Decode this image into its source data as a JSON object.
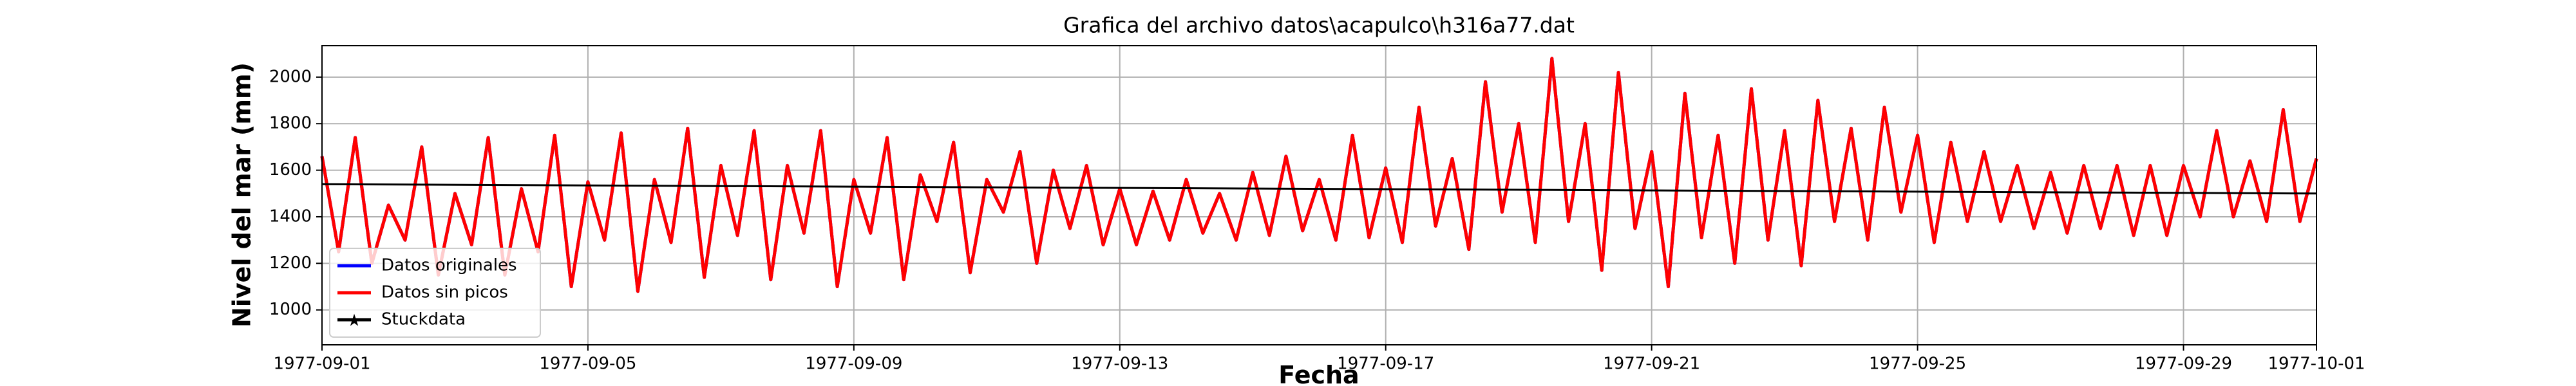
{
  "chart_data": {
    "type": "line",
    "title": "Grafica del archivo datos\\acapulco\\h316a77.dat",
    "xlabel": "Fecha",
    "ylabel": "Nivel del mar (mm)",
    "xlim": [
      0,
      30
    ],
    "ylim": [
      850,
      2135
    ],
    "xticks": [
      {
        "value": 0,
        "label": "1977-09-01"
      },
      {
        "value": 4,
        "label": "1977-09-05"
      },
      {
        "value": 8,
        "label": "1977-09-09"
      },
      {
        "value": 12,
        "label": "1977-09-13"
      },
      {
        "value": 16,
        "label": "1977-09-17"
      },
      {
        "value": 20,
        "label": "1977-09-21"
      },
      {
        "value": 24,
        "label": "1977-09-25"
      },
      {
        "value": 28,
        "label": "1977-09-29"
      },
      {
        "value": 30,
        "label": "1977-10-01"
      }
    ],
    "yticks": [
      1000,
      1200,
      1400,
      1600,
      1800,
      2000
    ],
    "grid": true,
    "legend": "lower left",
    "x": [
      0,
      0.25,
      0.5,
      0.75,
      1,
      1.25,
      1.5,
      1.75,
      2,
      2.25,
      2.5,
      2.75,
      3,
      3.25,
      3.5,
      3.75,
      4,
      4.25,
      4.5,
      4.75,
      5,
      5.25,
      5.5,
      5.75,
      6,
      6.25,
      6.5,
      6.75,
      7,
      7.25,
      7.5,
      7.75,
      8,
      8.25,
      8.5,
      8.75,
      9,
      9.25,
      9.5,
      9.75,
      10,
      10.25,
      10.5,
      10.75,
      11,
      11.25,
      11.5,
      11.75,
      12,
      12.25,
      12.5,
      12.75,
      13,
      13.25,
      13.5,
      13.75,
      14,
      14.25,
      14.5,
      14.75,
      15,
      15.25,
      15.5,
      15.75,
      16,
      16.25,
      16.5,
      16.75,
      17,
      17.25,
      17.5,
      17.75,
      18,
      18.25,
      18.5,
      18.75,
      19,
      19.25,
      19.5,
      19.75,
      20,
      20.25,
      20.5,
      20.75,
      21,
      21.25,
      21.5,
      21.75,
      22,
      22.25,
      22.5,
      22.75,
      23,
      23.25,
      23.5,
      23.75,
      24,
      24.25,
      24.5,
      24.75,
      25,
      25.25,
      25.5,
      25.75,
      26,
      26.25,
      26.5,
      26.75,
      27,
      27.25,
      27.5,
      27.75,
      28,
      28.25,
      28.5,
      28.75,
      29,
      29.25,
      29.5,
      29.75,
      30
    ],
    "series": [
      {
        "name": "Datos originales",
        "color": "#0000ff",
        "values": [
          1660,
          1250,
          1740,
          1200,
          1450,
          1300,
          1700,
          1150,
          1500,
          1280,
          1740,
          1150,
          1520,
          1250,
          1750,
          1100,
          1550,
          1300,
          1760,
          1080,
          1560,
          1290,
          1780,
          1140,
          1620,
          1320,
          1770,
          1130,
          1620,
          1330,
          1770,
          1100,
          1560,
          1330,
          1740,
          1130,
          1580,
          1380,
          1720,
          1160,
          1560,
          1420,
          1680,
          1200,
          1600,
          1350,
          1620,
          1280,
          1520,
          1280,
          1510,
          1300,
          1560,
          1330,
          1500,
          1300,
          1590,
          1320,
          1660,
          1340,
          1560,
          1300,
          1750,
          1310,
          1610,
          1290,
          1870,
          1360,
          1650,
          1260,
          1980,
          1420,
          1800,
          1290,
          2080,
          1380,
          1800,
          1170,
          2020,
          1350,
          1680,
          1100,
          1930,
          1310,
          1750,
          1200,
          1950,
          1300,
          1770,
          1190,
          1900,
          1380,
          1780,
          1300,
          1870,
          1420,
          1750,
          1290,
          1720,
          1380,
          1680,
          1380,
          1620,
          1350,
          1590,
          1330,
          1620,
          1350,
          1620,
          1320,
          1620,
          1320,
          1620,
          1400,
          1770,
          1400,
          1640,
          1380,
          1860,
          1380,
          1650
        ]
      },
      {
        "name": "Datos sin picos",
        "color": "#ff0000",
        "values": [
          1660,
          1250,
          1740,
          1200,
          1450,
          1300,
          1700,
          1150,
          1500,
          1280,
          1740,
          1150,
          1520,
          1250,
          1750,
          1100,
          1550,
          1300,
          1760,
          1080,
          1560,
          1290,
          1780,
          1140,
          1620,
          1320,
          1770,
          1130,
          1620,
          1330,
          1770,
          1100,
          1560,
          1330,
          1740,
          1130,
          1580,
          1380,
          1720,
          1160,
          1560,
          1420,
          1680,
          1200,
          1600,
          1350,
          1620,
          1280,
          1520,
          1280,
          1510,
          1300,
          1560,
          1330,
          1500,
          1300,
          1590,
          1320,
          1660,
          1340,
          1560,
          1300,
          1750,
          1310,
          1610,
          1290,
          1870,
          1360,
          1650,
          1260,
          1980,
          1420,
          1800,
          1290,
          2080,
          1380,
          1800,
          1170,
          2020,
          1350,
          1680,
          1100,
          1930,
          1310,
          1750,
          1200,
          1950,
          1300,
          1770,
          1190,
          1900,
          1380,
          1780,
          1300,
          1870,
          1420,
          1750,
          1290,
          1720,
          1380,
          1680,
          1380,
          1620,
          1350,
          1590,
          1330,
          1620,
          1350,
          1620,
          1320,
          1620,
          1320,
          1620,
          1400,
          1770,
          1400,
          1640,
          1380,
          1860,
          1380,
          1650
        ]
      },
      {
        "name": "Stuckdata",
        "color": "#000000",
        "x": [
          0,
          30
        ],
        "values": [
          1540,
          1500
        ]
      }
    ]
  }
}
